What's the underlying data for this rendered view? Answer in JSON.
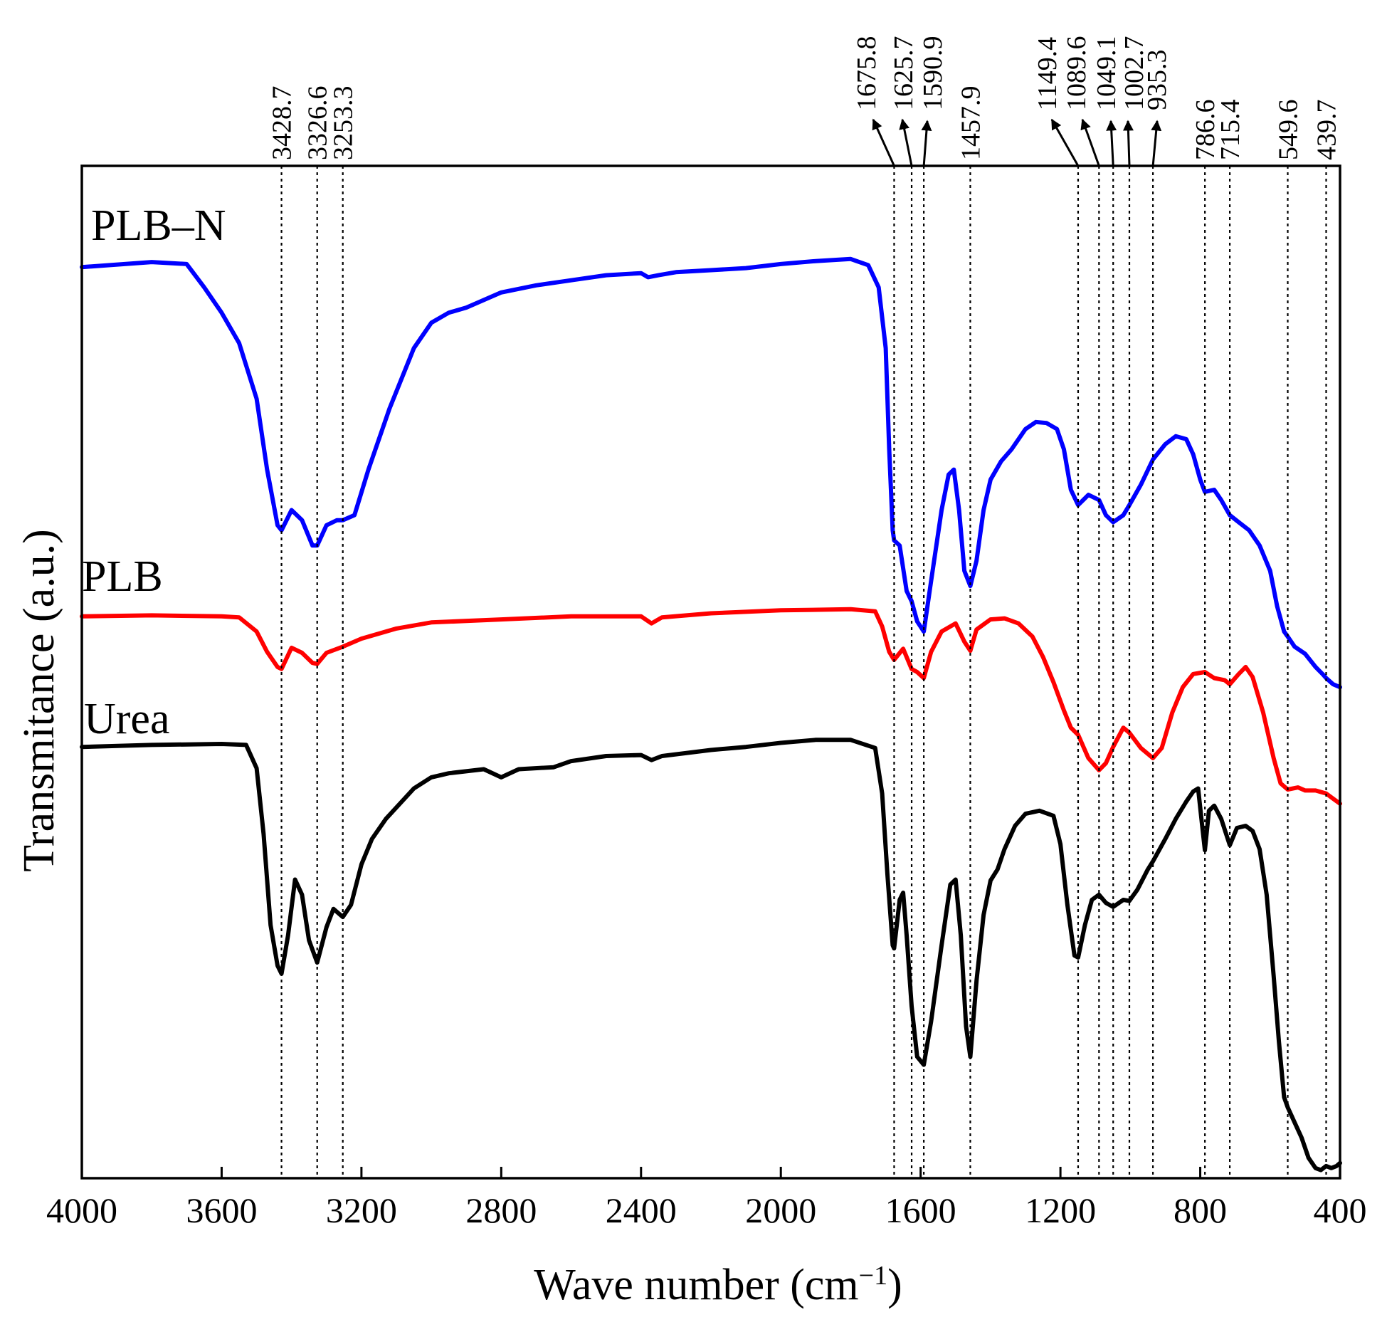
{
  "chart_data": {
    "type": "line",
    "title": "",
    "xlabel": "Wave number (cm",
    "xlabel_sup": "−1",
    "xlabel_close": ")",
    "ylabel": "Transmitance (a.u.)",
    "xlim": [
      4000,
      400
    ],
    "x_reversed": true,
    "xticks": [
      4000,
      3600,
      3200,
      2800,
      2400,
      2000,
      1600,
      1200,
      800,
      400
    ],
    "xtick_labels": [
      "4000",
      "3600",
      "3200",
      "2800",
      "2400",
      "2000",
      "1600",
      "1200",
      "800",
      "400"
    ],
    "ylim": [
      0,
      100
    ],
    "y_ticks_shown": false,
    "grid": false,
    "legend": "inline-labels-left",
    "peak_markers": [
      {
        "value": 3428.7,
        "label": "3428.7",
        "style": "line"
      },
      {
        "value": 3326.6,
        "label": "3326.6",
        "style": "line"
      },
      {
        "value": 3253.3,
        "label": "3253.3",
        "style": "line"
      },
      {
        "value": 1675.8,
        "label": "1675.8",
        "style": "arrow"
      },
      {
        "value": 1625.7,
        "label": "1625.7",
        "style": "arrow"
      },
      {
        "value": 1590.9,
        "label": "1590.9",
        "style": "arrow"
      },
      {
        "value": 1457.9,
        "label": "1457.9",
        "style": "line"
      },
      {
        "value": 1149.4,
        "label": "1149.4",
        "style": "arrow"
      },
      {
        "value": 1089.6,
        "label": "1089.6",
        "style": "arrow"
      },
      {
        "value": 1049.1,
        "label": "1049.1",
        "style": "arrow"
      },
      {
        "value": 1002.7,
        "label": "1002.7",
        "style": "arrow"
      },
      {
        "value": 935.3,
        "label": "935.3",
        "style": "arrow"
      },
      {
        "value": 786.6,
        "label": "786.6",
        "style": "line"
      },
      {
        "value": 715.4,
        "label": "715.4",
        "style": "line"
      },
      {
        "value": 549.6,
        "label": "549.6",
        "style": "line"
      },
      {
        "value": 439.7,
        "label": "439.7",
        "style": "line"
      }
    ],
    "series": [
      {
        "name": "PLB–N",
        "color": "#0000ff",
        "points": [
          [
            4000,
            90
          ],
          [
            3800,
            90.5
          ],
          [
            3700,
            90.3
          ],
          [
            3650,
            88
          ],
          [
            3600,
            85.5
          ],
          [
            3550,
            82.5
          ],
          [
            3500,
            77
          ],
          [
            3470,
            70
          ],
          [
            3440,
            64.5
          ],
          [
            3428.7,
            64
          ],
          [
            3400,
            66
          ],
          [
            3370,
            65
          ],
          [
            3340,
            62.5
          ],
          [
            3326.6,
            62.5
          ],
          [
            3300,
            64.5
          ],
          [
            3270,
            65
          ],
          [
            3253.3,
            65
          ],
          [
            3220,
            65.5
          ],
          [
            3180,
            70
          ],
          [
            3120,
            76
          ],
          [
            3050,
            82
          ],
          [
            3000,
            84.5
          ],
          [
            2950,
            85.5
          ],
          [
            2900,
            86
          ],
          [
            2800,
            87.5
          ],
          [
            2700,
            88.2
          ],
          [
            2600,
            88.7
          ],
          [
            2500,
            89.2
          ],
          [
            2400,
            89.4
          ],
          [
            2380,
            89
          ],
          [
            2350,
            89.2
          ],
          [
            2300,
            89.5
          ],
          [
            2200,
            89.7
          ],
          [
            2100,
            89.9
          ],
          [
            2000,
            90.3
          ],
          [
            1900,
            90.6
          ],
          [
            1800,
            90.8
          ],
          [
            1750,
            90.2
          ],
          [
            1720,
            88
          ],
          [
            1700,
            82
          ],
          [
            1690,
            72
          ],
          [
            1680,
            64
          ],
          [
            1675.8,
            63
          ],
          [
            1660,
            62.5
          ],
          [
            1640,
            58
          ],
          [
            1625.7,
            57
          ],
          [
            1610,
            55
          ],
          [
            1590.9,
            54
          ],
          [
            1570,
            59
          ],
          [
            1540,
            66
          ],
          [
            1520,
            69.5
          ],
          [
            1505,
            70
          ],
          [
            1490,
            66
          ],
          [
            1475,
            60
          ],
          [
            1457.9,
            58.5
          ],
          [
            1440,
            61
          ],
          [
            1420,
            66
          ],
          [
            1400,
            69
          ],
          [
            1370,
            70.8
          ],
          [
            1340,
            72
          ],
          [
            1300,
            74
          ],
          [
            1270,
            74.7
          ],
          [
            1240,
            74.6
          ],
          [
            1210,
            74
          ],
          [
            1190,
            72
          ],
          [
            1170,
            68
          ],
          [
            1149.4,
            66.5
          ],
          [
            1120,
            67.5
          ],
          [
            1089.6,
            67
          ],
          [
            1070,
            65.5
          ],
          [
            1049.1,
            64.8
          ],
          [
            1020,
            65.5
          ],
          [
            1002.7,
            66.5
          ],
          [
            970,
            68.5
          ],
          [
            935.3,
            71
          ],
          [
            900,
            72.5
          ],
          [
            870,
            73.3
          ],
          [
            840,
            73
          ],
          [
            820,
            71.5
          ],
          [
            800,
            69
          ],
          [
            786.6,
            67.8
          ],
          [
            760,
            68
          ],
          [
            740,
            67
          ],
          [
            715.4,
            65.5
          ],
          [
            690,
            64.8
          ],
          [
            660,
            64
          ],
          [
            630,
            62.5
          ],
          [
            600,
            60
          ],
          [
            580,
            56.5
          ],
          [
            560,
            54
          ],
          [
            549.6,
            53.5
          ],
          [
            530,
            52.5
          ],
          [
            500,
            51.8
          ],
          [
            470,
            50.5
          ],
          [
            450,
            49.8
          ],
          [
            439.7,
            49.4
          ],
          [
            420,
            48.8
          ],
          [
            400,
            48.5
          ]
        ]
      },
      {
        "name": "PLB",
        "color": "#ff0000",
        "points": [
          [
            4000,
            55.5
          ],
          [
            3800,
            55.6
          ],
          [
            3600,
            55.5
          ],
          [
            3550,
            55.4
          ],
          [
            3500,
            54
          ],
          [
            3470,
            52
          ],
          [
            3440,
            50.5
          ],
          [
            3428.7,
            50.3
          ],
          [
            3400,
            52.4
          ],
          [
            3370,
            51.9
          ],
          [
            3340,
            50.9
          ],
          [
            3326.6,
            50.8
          ],
          [
            3300,
            51.9
          ],
          [
            3253.3,
            52.5
          ],
          [
            3200,
            53.3
          ],
          [
            3100,
            54.3
          ],
          [
            3000,
            54.9
          ],
          [
            2800,
            55.2
          ],
          [
            2600,
            55.5
          ],
          [
            2400,
            55.5
          ],
          [
            2370,
            54.8
          ],
          [
            2340,
            55.4
          ],
          [
            2200,
            55.8
          ],
          [
            2000,
            56.1
          ],
          [
            1800,
            56.2
          ],
          [
            1730,
            56
          ],
          [
            1710,
            54.5
          ],
          [
            1690,
            52
          ],
          [
            1675.8,
            51.2
          ],
          [
            1650,
            52.3
          ],
          [
            1625.7,
            50.3
          ],
          [
            1610,
            50
          ],
          [
            1590.9,
            49.4
          ],
          [
            1570,
            52
          ],
          [
            1540,
            54
          ],
          [
            1500,
            54.8
          ],
          [
            1475,
            53
          ],
          [
            1457.9,
            52.1
          ],
          [
            1440,
            54.2
          ],
          [
            1400,
            55.2
          ],
          [
            1360,
            55.3
          ],
          [
            1320,
            54.8
          ],
          [
            1280,
            53.5
          ],
          [
            1250,
            51.5
          ],
          [
            1220,
            49
          ],
          [
            1190,
            46.2
          ],
          [
            1170,
            44.5
          ],
          [
            1149.4,
            43.8
          ],
          [
            1120,
            41.5
          ],
          [
            1089.6,
            40.3
          ],
          [
            1070,
            41
          ],
          [
            1049.1,
            42.6
          ],
          [
            1020,
            44.5
          ],
          [
            1002.7,
            44
          ],
          [
            970,
            42.5
          ],
          [
            935.3,
            41.5
          ],
          [
            910,
            42.5
          ],
          [
            880,
            46
          ],
          [
            850,
            48.5
          ],
          [
            820,
            49.8
          ],
          [
            786.6,
            50
          ],
          [
            760,
            49.4
          ],
          [
            730,
            49.2
          ],
          [
            715.4,
            48.8
          ],
          [
            690,
            49.8
          ],
          [
            670,
            50.5
          ],
          [
            650,
            49.5
          ],
          [
            620,
            46
          ],
          [
            590,
            41.5
          ],
          [
            570,
            39
          ],
          [
            549.6,
            38.4
          ],
          [
            520,
            38.6
          ],
          [
            500,
            38.3
          ],
          [
            470,
            38.3
          ],
          [
            439.7,
            38
          ],
          [
            420,
            37.5
          ],
          [
            400,
            37
          ]
        ]
      },
      {
        "name": "Urea",
        "color": "#000000",
        "points": [
          [
            4000,
            42.6
          ],
          [
            3800,
            42.8
          ],
          [
            3600,
            42.9
          ],
          [
            3530,
            42.8
          ],
          [
            3500,
            40.5
          ],
          [
            3480,
            34
          ],
          [
            3460,
            25
          ],
          [
            3440,
            21
          ],
          [
            3428.7,
            20.2
          ],
          [
            3410,
            24
          ],
          [
            3390,
            29.5
          ],
          [
            3370,
            28
          ],
          [
            3350,
            23.5
          ],
          [
            3326.6,
            21.3
          ],
          [
            3300,
            24.8
          ],
          [
            3280,
            26.6
          ],
          [
            3260,
            26
          ],
          [
            3253.3,
            25.8
          ],
          [
            3230,
            27
          ],
          [
            3200,
            31
          ],
          [
            3170,
            33.5
          ],
          [
            3130,
            35.5
          ],
          [
            3050,
            38.5
          ],
          [
            3000,
            39.6
          ],
          [
            2950,
            40
          ],
          [
            2850,
            40.4
          ],
          [
            2800,
            39.6
          ],
          [
            2750,
            40.4
          ],
          [
            2650,
            40.6
          ],
          [
            2600,
            41.2
          ],
          [
            2500,
            41.7
          ],
          [
            2400,
            41.8
          ],
          [
            2370,
            41.3
          ],
          [
            2340,
            41.7
          ],
          [
            2200,
            42.3
          ],
          [
            2100,
            42.6
          ],
          [
            2000,
            43
          ],
          [
            1900,
            43.3
          ],
          [
            1800,
            43.3
          ],
          [
            1730,
            42.5
          ],
          [
            1710,
            38
          ],
          [
            1695,
            30
          ],
          [
            1680,
            23
          ],
          [
            1675.8,
            22.7
          ],
          [
            1660,
            27.5
          ],
          [
            1650,
            28.2
          ],
          [
            1640,
            24
          ],
          [
            1625.7,
            17
          ],
          [
            1610,
            12
          ],
          [
            1590.9,
            11.2
          ],
          [
            1570,
            15.5
          ],
          [
            1540,
            23
          ],
          [
            1515,
            29
          ],
          [
            1500,
            29.5
          ],
          [
            1485,
            24
          ],
          [
            1470,
            15
          ],
          [
            1457.9,
            12
          ],
          [
            1440,
            19.5
          ],
          [
            1420,
            26
          ],
          [
            1400,
            29.4
          ],
          [
            1380,
            30.5
          ],
          [
            1360,
            32.5
          ],
          [
            1330,
            34.8
          ],
          [
            1300,
            36
          ],
          [
            1260,
            36.3
          ],
          [
            1220,
            35.8
          ],
          [
            1200,
            33
          ],
          [
            1180,
            27
          ],
          [
            1160,
            22
          ],
          [
            1149.4,
            21.8
          ],
          [
            1130,
            25
          ],
          [
            1110,
            27.5
          ],
          [
            1089.6,
            28
          ],
          [
            1070,
            27.2
          ],
          [
            1049.1,
            26.8
          ],
          [
            1020,
            27.5
          ],
          [
            1002.7,
            27.4
          ],
          [
            980,
            28.5
          ],
          [
            950,
            30.5
          ],
          [
            935.3,
            31.3
          ],
          [
            900,
            33.5
          ],
          [
            870,
            35.5
          ],
          [
            840,
            37.2
          ],
          [
            820,
            38.2
          ],
          [
            806,
            38.5
          ],
          [
            795,
            35
          ],
          [
            786.6,
            32.4
          ],
          [
            775,
            36.3
          ],
          [
            760,
            36.8
          ],
          [
            740,
            35.5
          ],
          [
            715.4,
            32.9
          ],
          [
            695,
            34.6
          ],
          [
            670,
            34.8
          ],
          [
            650,
            34.3
          ],
          [
            630,
            32.5
          ],
          [
            610,
            28
          ],
          [
            590,
            20
          ],
          [
            575,
            13.5
          ],
          [
            560,
            8
          ],
          [
            549.6,
            7
          ],
          [
            530,
            5.5
          ],
          [
            510,
            4
          ],
          [
            490,
            2
          ],
          [
            470,
            1
          ],
          [
            455,
            0.8
          ],
          [
            439.7,
            1.2
          ],
          [
            425,
            1
          ],
          [
            410,
            1.2
          ],
          [
            400,
            1.5
          ]
        ]
      }
    ]
  }
}
